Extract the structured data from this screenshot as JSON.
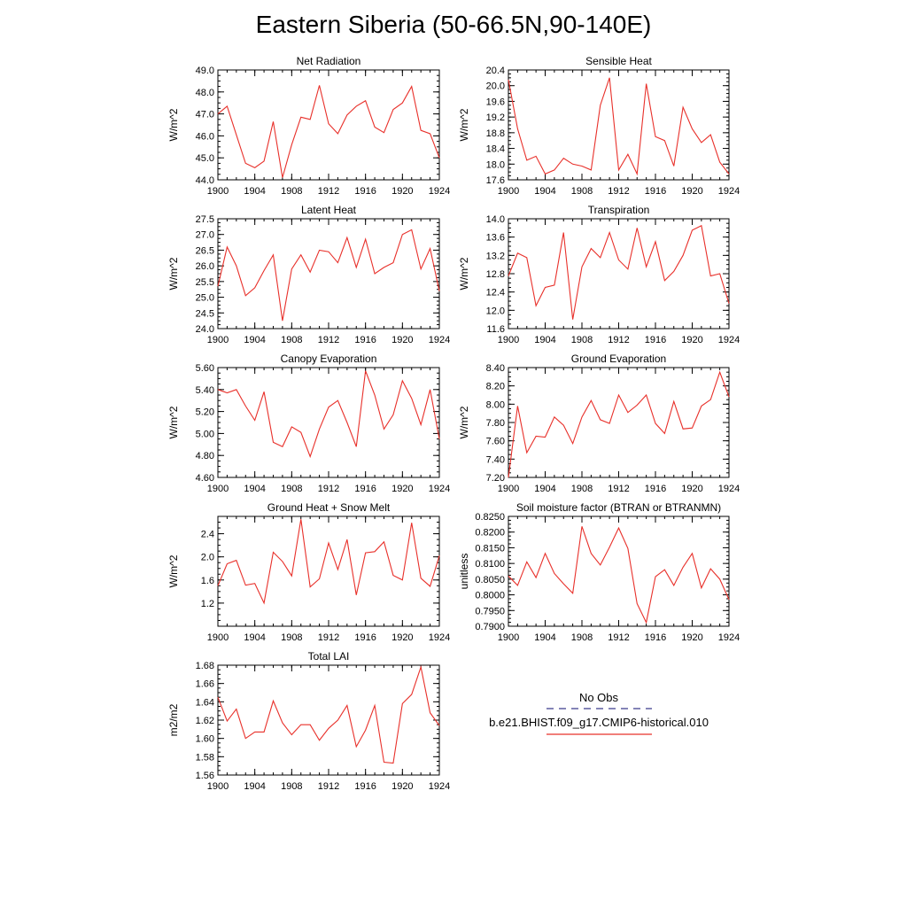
{
  "page": {
    "title": "Eastern Siberia (50-66.5N,90-140E)"
  },
  "legend": {
    "obs_label": "No Obs",
    "obs_color": "#3a3a8c",
    "model_label": "b.e21.BHIST.f09_g17.CMIP6-historical.010",
    "model_color": "#e8302a"
  },
  "chart_data": [
    {
      "type": "line",
      "title": "Net Radiation",
      "ylabel": "W/m^2",
      "xlim": [
        1900,
        1924
      ],
      "ylim": [
        44.0,
        49.0
      ],
      "xticks": [
        1900,
        1904,
        1908,
        1912,
        1916,
        1920,
        1924
      ],
      "yticks": [
        44.0,
        45.0,
        46.0,
        47.0,
        48.0,
        49.0
      ],
      "ytick_labels": [
        "44.0",
        "45.0",
        "46.0",
        "47.0",
        "48.0",
        "49.0"
      ],
      "x": [
        1900,
        1901,
        1902,
        1903,
        1904,
        1905,
        1906,
        1907,
        1908,
        1909,
        1910,
        1911,
        1912,
        1913,
        1914,
        1915,
        1916,
        1917,
        1918,
        1919,
        1920,
        1921,
        1922,
        1923,
        1924
      ],
      "series": [
        {
          "name": "b.e21.BHIST.f09_g17.CMIP6-historical.010",
          "color": "#e8302a",
          "values": [
            47.0,
            47.35,
            46.05,
            44.75,
            44.55,
            44.85,
            46.65,
            44.1,
            45.6,
            46.85,
            46.75,
            48.3,
            46.55,
            46.1,
            46.95,
            47.35,
            47.6,
            46.4,
            46.15,
            47.2,
            47.5,
            48.25,
            46.25,
            46.1,
            45.0
          ]
        }
      ]
    },
    {
      "type": "line",
      "title": "Sensible Heat",
      "ylabel": "W/m^2",
      "xlim": [
        1900,
        1924
      ],
      "ylim": [
        17.6,
        20.4
      ],
      "xticks": [
        1900,
        1904,
        1908,
        1912,
        1916,
        1920,
        1924
      ],
      "yticks": [
        17.6,
        18.0,
        18.4,
        18.8,
        19.2,
        19.6,
        20.0,
        20.4
      ],
      "ytick_labels": [
        "17.6",
        "18.0",
        "18.4",
        "18.8",
        "19.2",
        "19.6",
        "20.0",
        "20.4"
      ],
      "x": [
        1900,
        1901,
        1902,
        1903,
        1904,
        1905,
        1906,
        1907,
        1908,
        1909,
        1910,
        1911,
        1912,
        1913,
        1914,
        1915,
        1916,
        1917,
        1918,
        1919,
        1920,
        1921,
        1922,
        1923,
        1924
      ],
      "series": [
        {
          "name": "b.e21.BHIST.f09_g17.CMIP6-historical.010",
          "color": "#e8302a",
          "values": [
            20.15,
            18.9,
            18.1,
            18.2,
            17.75,
            17.85,
            18.15,
            18.0,
            17.95,
            17.85,
            19.5,
            20.2,
            17.85,
            18.25,
            17.75,
            20.05,
            18.7,
            18.6,
            17.95,
            19.45,
            18.9,
            18.55,
            18.75,
            18.05,
            17.75
          ]
        }
      ]
    },
    {
      "type": "line",
      "title": "Latent Heat",
      "ylabel": "W/m^2",
      "xlim": [
        1900,
        1924
      ],
      "ylim": [
        24.0,
        27.5
      ],
      "xticks": [
        1900,
        1904,
        1908,
        1912,
        1916,
        1920,
        1924
      ],
      "yticks": [
        24.0,
        24.5,
        25.0,
        25.5,
        26.0,
        26.5,
        27.0,
        27.5
      ],
      "ytick_labels": [
        "24.0",
        "24.5",
        "25.0",
        "25.5",
        "26.0",
        "26.5",
        "27.0",
        "27.5"
      ],
      "x": [
        1900,
        1901,
        1902,
        1903,
        1904,
        1905,
        1906,
        1907,
        1908,
        1909,
        1910,
        1911,
        1912,
        1913,
        1914,
        1915,
        1916,
        1917,
        1918,
        1919,
        1920,
        1921,
        1922,
        1923,
        1924
      ],
      "series": [
        {
          "name": "b.e21.BHIST.f09_g17.CMIP6-historical.010",
          "color": "#e8302a",
          "values": [
            25.35,
            26.6,
            26.0,
            25.05,
            25.3,
            25.85,
            26.35,
            24.25,
            25.9,
            26.35,
            25.8,
            26.5,
            26.45,
            26.1,
            26.9,
            25.95,
            26.85,
            25.75,
            25.95,
            26.1,
            27.0,
            27.15,
            25.9,
            26.55,
            25.2
          ]
        }
      ]
    },
    {
      "type": "line",
      "title": "Transpiration",
      "ylabel": "W/m^2",
      "xlim": [
        1900,
        1924
      ],
      "ylim": [
        11.6,
        14.0
      ],
      "xticks": [
        1900,
        1904,
        1908,
        1912,
        1916,
        1920,
        1924
      ],
      "yticks": [
        11.6,
        12.0,
        12.4,
        12.8,
        13.2,
        13.6,
        14.0
      ],
      "ytick_labels": [
        "11.6",
        "12.0",
        "12.4",
        "12.8",
        "13.2",
        "13.6",
        "14.0"
      ],
      "x": [
        1900,
        1901,
        1902,
        1903,
        1904,
        1905,
        1906,
        1907,
        1908,
        1909,
        1910,
        1911,
        1912,
        1913,
        1914,
        1915,
        1916,
        1917,
        1918,
        1919,
        1920,
        1921,
        1922,
        1923,
        1924
      ],
      "series": [
        {
          "name": "b.e21.BHIST.f09_g17.CMIP6-historical.010",
          "color": "#e8302a",
          "values": [
            12.75,
            13.25,
            13.15,
            12.1,
            12.5,
            12.55,
            13.7,
            11.8,
            12.95,
            13.35,
            13.15,
            13.7,
            13.1,
            12.9,
            13.8,
            12.95,
            13.5,
            12.65,
            12.85,
            13.2,
            13.75,
            13.85,
            12.75,
            12.8,
            12.15
          ]
        }
      ]
    },
    {
      "type": "line",
      "title": "Canopy Evaporation",
      "ylabel": "W/m^2",
      "xlim": [
        1900,
        1924
      ],
      "ylim": [
        4.6,
        5.6
      ],
      "xticks": [
        1900,
        1904,
        1908,
        1912,
        1916,
        1920,
        1924
      ],
      "yticks": [
        4.6,
        4.8,
        5.0,
        5.2,
        5.4,
        5.6
      ],
      "ytick_labels": [
        "4.60",
        "4.80",
        "5.00",
        "5.20",
        "5.40",
        "5.60"
      ],
      "x": [
        1900,
        1901,
        1902,
        1903,
        1904,
        1905,
        1906,
        1907,
        1908,
        1909,
        1910,
        1911,
        1912,
        1913,
        1914,
        1915,
        1916,
        1917,
        1918,
        1919,
        1920,
        1921,
        1922,
        1923,
        1924
      ],
      "series": [
        {
          "name": "b.e21.BHIST.f09_g17.CMIP6-historical.010",
          "color": "#e8302a",
          "values": [
            5.4,
            5.37,
            5.4,
            5.25,
            5.12,
            5.38,
            4.92,
            4.88,
            5.06,
            5.01,
            4.79,
            5.04,
            5.24,
            5.3,
            5.1,
            4.88,
            5.57,
            5.35,
            5.04,
            5.17,
            5.48,
            5.32,
            5.08,
            5.4,
            4.95
          ]
        }
      ]
    },
    {
      "type": "line",
      "title": "Ground Evaporation",
      "ylabel": "W/m^2",
      "xlim": [
        1900,
        1924
      ],
      "ylim": [
        7.2,
        8.4
      ],
      "xticks": [
        1900,
        1904,
        1908,
        1912,
        1916,
        1920,
        1924
      ],
      "yticks": [
        7.2,
        7.4,
        7.6,
        7.8,
        8.0,
        8.2,
        8.4
      ],
      "ytick_labels": [
        "7.20",
        "7.40",
        "7.60",
        "7.80",
        "8.00",
        "8.20",
        "8.40"
      ],
      "x": [
        1900,
        1901,
        1902,
        1903,
        1904,
        1905,
        1906,
        1907,
        1908,
        1909,
        1910,
        1911,
        1912,
        1913,
        1914,
        1915,
        1916,
        1917,
        1918,
        1919,
        1920,
        1921,
        1922,
        1923,
        1924
      ],
      "series": [
        {
          "name": "b.e21.BHIST.f09_g17.CMIP6-historical.010",
          "color": "#e8302a",
          "values": [
            7.2,
            7.98,
            7.47,
            7.65,
            7.64,
            7.86,
            7.77,
            7.57,
            7.86,
            8.04,
            7.83,
            7.79,
            8.1,
            7.91,
            7.99,
            8.1,
            7.79,
            7.68,
            8.03,
            7.73,
            7.74,
            7.98,
            8.05,
            8.35,
            8.08
          ]
        }
      ]
    },
    {
      "type": "line",
      "title": "Ground Heat + Snow Melt",
      "ylabel": "W/m^2",
      "xlim": [
        1900,
        1924
      ],
      "ylim": [
        0.8,
        2.7
      ],
      "xticks": [
        1900,
        1904,
        1908,
        1912,
        1916,
        1920,
        1924
      ],
      "yticks": [
        1.2,
        1.6,
        2.0,
        2.4
      ],
      "ytick_labels": [
        "1.2",
        "1.6",
        "2.0",
        "2.4"
      ],
      "x": [
        1900,
        1901,
        1902,
        1903,
        1904,
        1905,
        1906,
        1907,
        1908,
        1909,
        1910,
        1911,
        1912,
        1913,
        1914,
        1915,
        1916,
        1917,
        1918,
        1919,
        1920,
        1921,
        1922,
        1923,
        1924
      ],
      "series": [
        {
          "name": "b.e21.BHIST.f09_g17.CMIP6-historical.010",
          "color": "#e8302a",
          "values": [
            1.5,
            1.88,
            1.94,
            1.51,
            1.54,
            1.2,
            2.08,
            1.92,
            1.67,
            2.65,
            1.48,
            1.62,
            2.24,
            1.78,
            2.3,
            1.34,
            2.07,
            2.09,
            2.26,
            1.68,
            1.6,
            2.59,
            1.63,
            1.49,
            2.02
          ]
        }
      ]
    },
    {
      "type": "line",
      "title": "Soil moisture factor (BTRAN or BTRANMN)",
      "ylabel": "unitless",
      "xlim": [
        1900,
        1924
      ],
      "ylim": [
        0.79,
        0.825
      ],
      "xticks": [
        1900,
        1904,
        1908,
        1912,
        1916,
        1920,
        1924
      ],
      "yticks": [
        0.79,
        0.795,
        0.8,
        0.805,
        0.81,
        0.815,
        0.82,
        0.825
      ],
      "ytick_labels": [
        "0.7900",
        "0.7950",
        "0.8000",
        "0.8050",
        "0.8100",
        "0.8150",
        "0.8200",
        "0.8250"
      ],
      "x": [
        1900,
        1901,
        1902,
        1903,
        1904,
        1905,
        1906,
        1907,
        1908,
        1909,
        1910,
        1911,
        1912,
        1913,
        1914,
        1915,
        1916,
        1917,
        1918,
        1919,
        1920,
        1921,
        1922,
        1923,
        1924
      ],
      "series": [
        {
          "name": "b.e21.BHIST.f09_g17.CMIP6-historical.010",
          "color": "#e8302a",
          "values": [
            0.806,
            0.803,
            0.8105,
            0.8055,
            0.8132,
            0.8068,
            0.8035,
            0.8005,
            0.8218,
            0.8132,
            0.8095,
            0.8152,
            0.8213,
            0.8148,
            0.7972,
            0.7912,
            0.8058,
            0.808,
            0.803,
            0.8088,
            0.8132,
            0.8022,
            0.8083,
            0.805,
            0.7985
          ]
        }
      ]
    },
    {
      "type": "line",
      "title": "Total LAI",
      "ylabel": "m2/m2",
      "xlim": [
        1900,
        1924
      ],
      "ylim": [
        1.56,
        1.68
      ],
      "xticks": [
        1900,
        1904,
        1908,
        1912,
        1916,
        1920,
        1924
      ],
      "yticks": [
        1.56,
        1.58,
        1.6,
        1.62,
        1.64,
        1.66,
        1.68
      ],
      "ytick_labels": [
        "1.56",
        "1.58",
        "1.60",
        "1.62",
        "1.64",
        "1.66",
        "1.68"
      ],
      "x": [
        1900,
        1901,
        1902,
        1903,
        1904,
        1905,
        1906,
        1907,
        1908,
        1909,
        1910,
        1911,
        1912,
        1913,
        1914,
        1915,
        1916,
        1917,
        1918,
        1919,
        1920,
        1921,
        1922,
        1923,
        1924
      ],
      "series": [
        {
          "name": "b.e21.BHIST.f09_g17.CMIP6-historical.010",
          "color": "#e8302a",
          "values": [
            1.645,
            1.619,
            1.632,
            1.6,
            1.607,
            1.607,
            1.641,
            1.617,
            1.604,
            1.615,
            1.615,
            1.598,
            1.611,
            1.62,
            1.636,
            1.591,
            1.609,
            1.636,
            1.574,
            1.573,
            1.638,
            1.648,
            1.678,
            1.628,
            1.614
          ]
        }
      ]
    }
  ]
}
